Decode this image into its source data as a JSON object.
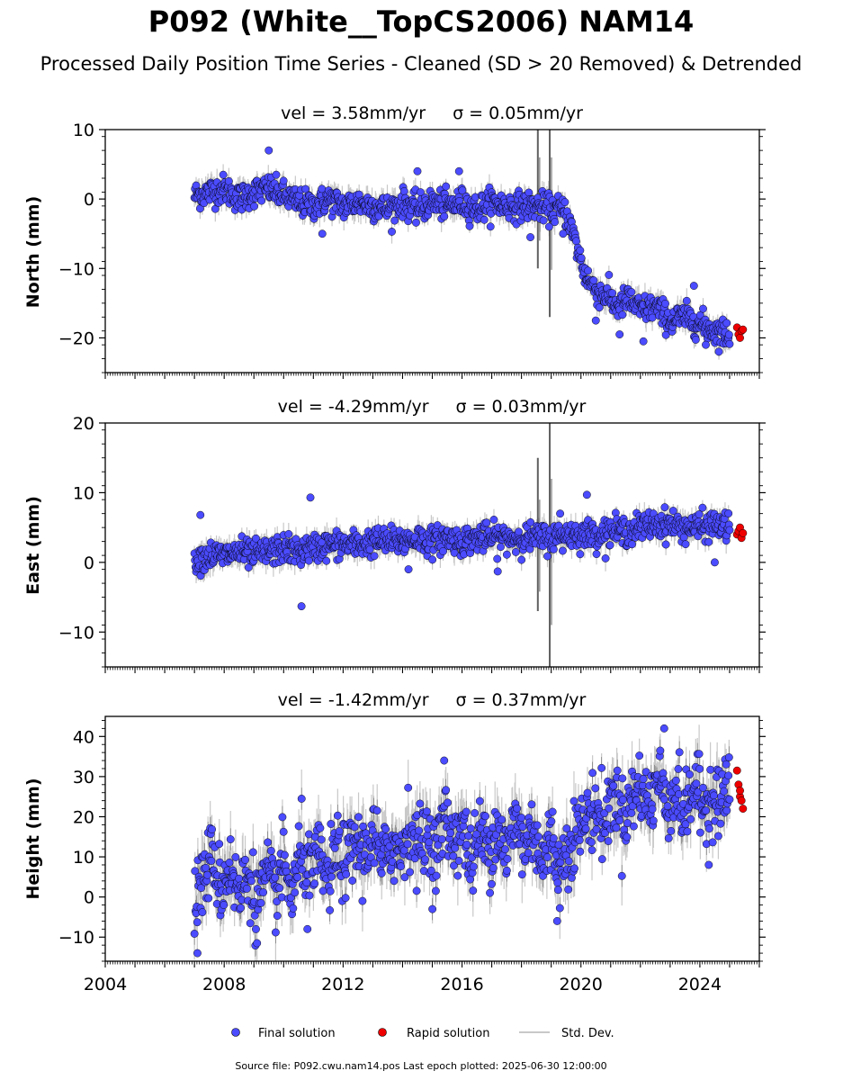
{
  "figure": {
    "title": "P092 (White__TopCS2006) NAM14",
    "subtitle": "Processed Daily Position Time Series - Cleaned (SD > 20 Removed) & Detrended",
    "footer": "Source file: P092.cwu.nam14.pos  Last epoch plotted: 2025-06-30 12:00:00"
  },
  "colors": {
    "final": "#4b4bff",
    "rapid": "#ee0000",
    "stddev": "#c8c8c8",
    "marker_edge": "#000000"
  },
  "legend": {
    "final": "Final solution",
    "rapid": "Rapid solution",
    "stddev": "Std. Dev."
  },
  "chart_data": [
    {
      "type": "scatter",
      "title_vel": "vel = 3.58mm/yr",
      "title_sigma": "σ = 0.05mm/yr",
      "ylabel": "North (mm)",
      "xlim": [
        2004,
        2026
      ],
      "ylim": [
        -25,
        10
      ],
      "yticks": [
        -20,
        -10,
        0,
        10
      ],
      "ytick_labels": [
        "−20",
        "−10",
        "0",
        "10"
      ],
      "xticks": [
        2004,
        2008,
        2012,
        2016,
        2020,
        2024
      ],
      "xtick_labels": [],
      "series": [
        {
          "role": "final",
          "name": "Final solution",
          "x": [
            2007.0,
            2007.5,
            2008.0,
            2008.5,
            2009.0,
            2009.5,
            2010.0,
            2010.5,
            2011.0,
            2011.5,
            2012.0,
            2012.5,
            2013.0,
            2013.5,
            2014.0,
            2014.5,
            2015.0,
            2015.5,
            2016.0,
            2016.5,
            2017.0,
            2017.5,
            2018.0,
            2018.5,
            2019.0,
            2019.3,
            2019.5,
            2019.7,
            2019.9,
            2020.1,
            2020.3,
            2020.6,
            2020.9,
            2021.2,
            2021.6,
            2022.0,
            2022.5,
            2023.0,
            2023.5,
            2024.0,
            2024.5,
            2025.0
          ],
          "y": [
            0.5,
            1.0,
            1.5,
            0.0,
            1.0,
            1.5,
            0.5,
            -0.5,
            -1.0,
            0.0,
            -1.0,
            -0.5,
            -1.0,
            -1.5,
            -0.5,
            -1.5,
            -0.5,
            -1.0,
            -0.5,
            -1.5,
            -0.5,
            -1.0,
            -1.0,
            -1.0,
            -1.5,
            -1.5,
            -2.0,
            -4.5,
            -7.5,
            -10.5,
            -12.0,
            -13.5,
            -14.0,
            -15.5,
            -14.5,
            -16.0,
            -15.5,
            -17.5,
            -17.0,
            -18.0,
            -19.0,
            -19.5
          ]
        },
        {
          "role": "rapid",
          "name": "Rapid solution",
          "x": [
            2025.25,
            2025.3,
            2025.35,
            2025.4,
            2025.45
          ],
          "y": [
            -18.5,
            -19.5,
            -20.0,
            -19.0,
            -18.8
          ]
        }
      ],
      "outliers": {
        "x": [
          2009.5,
          2011.3,
          2014.5,
          2015.9,
          2018.3,
          2019.4,
          2020.5,
          2021.3,
          2022.1,
          2023.8,
          2024.2
        ],
        "y": [
          7.0,
          -5.0,
          4.0,
          4.0,
          -5.5,
          -5.0,
          -17.5,
          -19.5,
          -20.5,
          -12.5,
          -21.0
        ]
      },
      "stddev_spikes": [
        {
          "x": 2018.55,
          "y_min": -10,
          "y_max": 10
        },
        {
          "x": 2018.95,
          "y_min": -17,
          "y_max": 10
        }
      ]
    },
    {
      "type": "scatter",
      "title_vel": "vel = -4.29mm/yr",
      "title_sigma": "σ = 0.03mm/yr",
      "ylabel": "East (mm)",
      "xlim": [
        2004,
        2026
      ],
      "ylim": [
        -15,
        20
      ],
      "yticks": [
        -10,
        0,
        10,
        20
      ],
      "ytick_labels": [
        "−10",
        "0",
        "10",
        "20"
      ],
      "xticks": [
        2004,
        2008,
        2012,
        2016,
        2020,
        2024
      ],
      "xtick_labels": [],
      "series": [
        {
          "role": "final",
          "name": "Final solution",
          "x": [
            2007.0,
            2007.5,
            2008.0,
            2008.5,
            2009.0,
            2009.5,
            2010.0,
            2010.5,
            2011.0,
            2011.5,
            2012.0,
            2012.5,
            2013.0,
            2013.5,
            2014.0,
            2014.5,
            2015.0,
            2015.5,
            2016.0,
            2016.5,
            2017.0,
            2017.5,
            2018.0,
            2018.5,
            2019.0,
            2019.5,
            2020.0,
            2020.5,
            2021.0,
            2021.5,
            2022.0,
            2022.5,
            2023.0,
            2023.5,
            2024.0,
            2024.5,
            2025.0
          ],
          "y": [
            0.5,
            1.0,
            1.0,
            1.5,
            1.0,
            1.5,
            2.0,
            1.5,
            2.0,
            2.5,
            2.5,
            2.5,
            3.0,
            3.0,
            3.0,
            3.5,
            3.0,
            3.5,
            3.0,
            3.5,
            3.5,
            3.5,
            3.5,
            3.5,
            3.5,
            4.0,
            4.0,
            4.0,
            4.5,
            4.5,
            5.0,
            5.5,
            5.5,
            5.0,
            5.0,
            5.5,
            5.0
          ]
        },
        {
          "role": "rapid",
          "name": "Rapid solution",
          "x": [
            2025.25,
            2025.3,
            2025.35,
            2025.4,
            2025.45
          ],
          "y": [
            4.0,
            4.5,
            5.0,
            3.5,
            4.2
          ]
        }
      ],
      "outliers": {
        "x": [
          2007.2,
          2010.6,
          2010.9,
          2014.2,
          2017.2,
          2019.3,
          2020.2,
          2024.5
        ],
        "y": [
          6.8,
          -6.3,
          9.3,
          -1.0,
          -1.3,
          7.0,
          9.7,
          0.0
        ]
      },
      "stddev_spikes": [
        {
          "x": 2018.55,
          "y_min": -7,
          "y_max": 15
        },
        {
          "x": 2018.95,
          "y_min": -15,
          "y_max": 20
        }
      ]
    },
    {
      "type": "scatter",
      "title_vel": "vel = -1.42mm/yr",
      "title_sigma": "σ = 0.37mm/yr",
      "ylabel": "Height (mm)",
      "xlim": [
        2004,
        2026
      ],
      "ylim": [
        -16,
        45
      ],
      "yticks": [
        -10,
        0,
        10,
        20,
        30,
        40
      ],
      "ytick_labels": [
        "−10",
        "0",
        "10",
        "20",
        "30",
        "40"
      ],
      "xticks": [
        2004,
        2008,
        2012,
        2016,
        2020,
        2024
      ],
      "xtick_labels": [
        "2004",
        "2008",
        "2012",
        "2016",
        "2020",
        "2024"
      ],
      "series": [
        {
          "role": "final",
          "name": "Final solution",
          "x": [
            2007.0,
            2007.3,
            2007.6,
            2007.9,
            2008.2,
            2008.5,
            2008.8,
            2009.1,
            2009.4,
            2009.7,
            2010.0,
            2010.3,
            2010.6,
            2010.9,
            2011.2,
            2011.5,
            2011.8,
            2012.1,
            2012.4,
            2012.7,
            2013.0,
            2013.3,
            2013.6,
            2013.9,
            2014.2,
            2014.5,
            2014.8,
            2015.1,
            2015.4,
            2015.7,
            2016.0,
            2016.3,
            2016.6,
            2016.9,
            2017.2,
            2017.5,
            2017.8,
            2018.1,
            2018.4,
            2018.7,
            2019.0,
            2019.3,
            2019.6,
            2019.9,
            2020.2,
            2020.5,
            2020.8,
            2021.1,
            2021.4,
            2021.7,
            2022.0,
            2022.3,
            2022.6,
            2022.9,
            2023.2,
            2023.5,
            2023.8,
            2024.1,
            2024.4,
            2024.7,
            2025.0
          ],
          "y": [
            -2,
            5,
            10,
            2,
            8,
            0,
            6,
            -2,
            5,
            1,
            8,
            0,
            12,
            5,
            10,
            4,
            12,
            8,
            14,
            10,
            16,
            8,
            14,
            10,
            18,
            12,
            16,
            10,
            20,
            14,
            18,
            8,
            16,
            12,
            18,
            10,
            20,
            12,
            18,
            8,
            15,
            6,
            14,
            16,
            20,
            22,
            18,
            26,
            20,
            24,
            28,
            22,
            30,
            24,
            26,
            20,
            28,
            22,
            26,
            24,
            28
          ]
        },
        {
          "role": "rapid",
          "name": "Rapid solution",
          "x": [
            2025.25,
            2025.3,
            2025.35,
            2025.4,
            2025.45,
            2025.35
          ],
          "y": [
            31.5,
            28.0,
            25.0,
            24.0,
            22.0,
            26.5
          ]
        }
      ],
      "outliers": {
        "x": [
          2007.1,
          2010.8,
          2015.4,
          2019.2,
          2022.8,
          2024.3
        ],
        "y": [
          -14.0,
          -8.0,
          34.0,
          -6.0,
          42.0,
          8.0
        ]
      },
      "stddev_spikes": []
    }
  ]
}
